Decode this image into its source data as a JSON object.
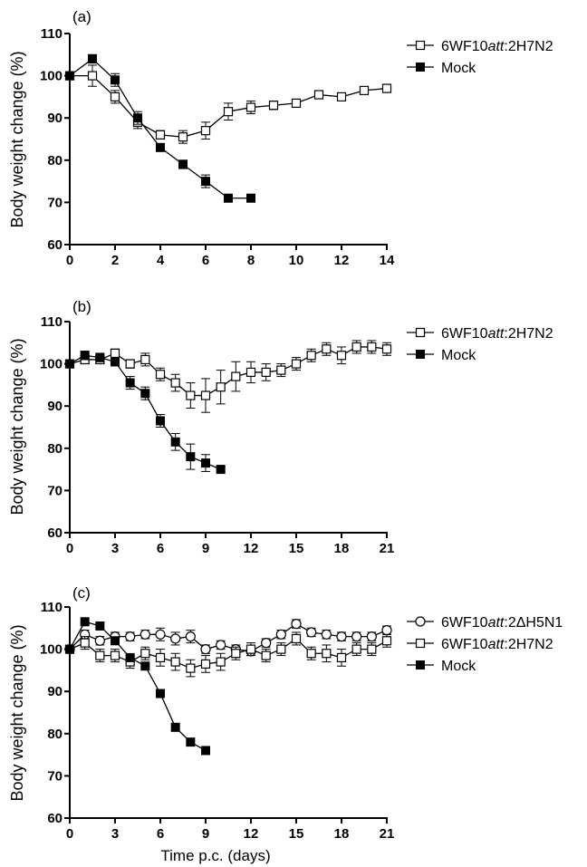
{
  "xlabel": "Time p.c. (days)",
  "chart_data": [
    {
      "type": "line",
      "panel": "(a)",
      "xlabel": "",
      "ylabel": "Body weight change (%)",
      "xlim": [
        0,
        14
      ],
      "ylim": [
        60,
        110
      ],
      "xticks": [
        "0",
        "2",
        "4",
        "6",
        "8",
        "10",
        "12",
        "14"
      ],
      "yticks": [
        "60",
        "70",
        "80",
        "90",
        "100",
        "110"
      ],
      "legend": [
        {
          "prefix": "6WF10",
          "italic": "att",
          "suffix": ":2H7N2",
          "marker": "open-square"
        },
        {
          "prefix": "Mock",
          "italic": "",
          "suffix": "",
          "marker": "filled-square"
        }
      ],
      "series": [
        {
          "name": "6WF10att:2H7N2",
          "marker": "open-square",
          "x": [
            0,
            1,
            2,
            3,
            4,
            5,
            6,
            7,
            8,
            9,
            10,
            11,
            12,
            13,
            14
          ],
          "y": [
            100,
            100,
            95,
            89,
            86,
            85.5,
            87,
            91.5,
            92.5,
            93,
            93.5,
            95.5,
            95,
            96.5,
            97
          ],
          "err": [
            0.8,
            2.5,
            1.5,
            1.5,
            1,
            1.5,
            2,
            2,
            1.5,
            1,
            0.8,
            0.5,
            0.5,
            0.5,
            0.5
          ]
        },
        {
          "name": "Mock",
          "marker": "filled-square",
          "x": [
            0,
            1,
            2,
            3,
            4,
            5,
            6,
            7,
            8
          ],
          "y": [
            100,
            104,
            99,
            90,
            83,
            79,
            75,
            71,
            71
          ],
          "err": [
            0.5,
            1,
            1.5,
            1.5,
            0.8,
            1,
            1.5,
            0.5,
            0
          ]
        }
      ]
    },
    {
      "type": "line",
      "panel": "(b)",
      "xlabel": "",
      "ylabel": "Body weight change (%)",
      "xlim": [
        0,
        21
      ],
      "ylim": [
        60,
        110
      ],
      "xticks": [
        "0",
        "3",
        "6",
        "9",
        "12",
        "15",
        "18",
        "21"
      ],
      "yticks": [
        "60",
        "70",
        "80",
        "90",
        "100",
        "110"
      ],
      "legend": [
        {
          "prefix": "6WF10",
          "italic": "att",
          "suffix": ":2H7N2",
          "marker": "open-square"
        },
        {
          "prefix": "Mock",
          "italic": "",
          "suffix": "",
          "marker": "filled-square"
        }
      ],
      "series": [
        {
          "name": "6WF10att:2H7N2",
          "marker": "open-square",
          "x": [
            0,
            1,
            2,
            3,
            4,
            5,
            6,
            7,
            8,
            9,
            10,
            11,
            12,
            13,
            14,
            15,
            16,
            17,
            18,
            19,
            20,
            21
          ],
          "y": [
            100,
            101,
            101,
            102.5,
            100,
            101,
            97.5,
            95.5,
            92.5,
            92.5,
            94.5,
            97,
            98,
            98,
            98.5,
            100,
            102,
            103.5,
            102,
            104,
            104,
            103.5
          ],
          "err": [
            0.5,
            1,
            1,
            1,
            1,
            1.5,
            1.5,
            2,
            3,
            4,
            4,
            3.5,
            2.5,
            2,
            1.5,
            1.5,
            1.5,
            1.5,
            2,
            1.5,
            1.5,
            1.5
          ]
        },
        {
          "name": "Mock",
          "marker": "filled-square",
          "x": [
            0,
            1,
            2,
            3,
            4,
            5,
            6,
            7,
            8,
            9,
            10
          ],
          "y": [
            100,
            102,
            101.5,
            100.5,
            95.5,
            93,
            86.5,
            81.5,
            78,
            76.5,
            75
          ],
          "err": [
            0.5,
            1,
            1,
            1,
            1.5,
            1.5,
            1.5,
            2,
            3,
            2,
            0.5
          ]
        }
      ]
    },
    {
      "type": "line",
      "panel": "(c)",
      "xlabel": "Time p.c. (days)",
      "ylabel": "Body weight change (%)",
      "xlim": [
        0,
        21
      ],
      "ylim": [
        60,
        110
      ],
      "xticks": [
        "0",
        "3",
        "6",
        "9",
        "12",
        "15",
        "18",
        "21"
      ],
      "yticks": [
        "60",
        "70",
        "80",
        "90",
        "100",
        "110"
      ],
      "legend": [
        {
          "prefix": "6WF10",
          "italic": "att",
          "suffix": ":2ΔH5N1",
          "marker": "open-circle"
        },
        {
          "prefix": "6WF10",
          "italic": "att",
          "suffix": ":2H7N2",
          "marker": "open-square"
        },
        {
          "prefix": "Mock",
          "italic": "",
          "suffix": "",
          "marker": "filled-square"
        }
      ],
      "series": [
        {
          "name": "6WF10att:2ΔH5N1",
          "marker": "open-circle",
          "x": [
            0,
            1,
            2,
            3,
            4,
            5,
            6,
            7,
            8,
            9,
            10,
            11,
            12,
            13,
            14,
            15,
            16,
            17,
            18,
            19,
            20,
            21
          ],
          "y": [
            100,
            103.5,
            102,
            103,
            103,
            103.5,
            103.5,
            102.5,
            103,
            100,
            101,
            100,
            99.5,
            101.5,
            103.5,
            106,
            104,
            103.5,
            103,
            103,
            103,
            104.5
          ],
          "err": [
            0.5,
            1,
            1,
            1,
            1,
            1,
            1.5,
            1.5,
            1.5,
            1,
            1,
            1,
            1,
            1,
            1,
            1,
            1,
            1,
            1,
            1,
            1,
            1
          ]
        },
        {
          "name": "6WF10att:2H7N2",
          "marker": "open-square",
          "x": [
            0,
            1,
            2,
            3,
            4,
            5,
            6,
            7,
            8,
            9,
            10,
            11,
            12,
            13,
            14,
            15,
            16,
            17,
            18,
            19,
            20,
            21
          ],
          "y": [
            100,
            101.5,
            98.5,
            98.5,
            97,
            99,
            98,
            97,
            95.5,
            96.5,
            97,
            99,
            100,
            98.5,
            100,
            102.5,
            99,
            99,
            98,
            100,
            100,
            102
          ],
          "err": [
            0.5,
            1.5,
            1.5,
            1.5,
            1.5,
            1.5,
            2,
            2,
            2,
            2,
            2,
            1.5,
            1.5,
            1.5,
            1.5,
            1.5,
            1.5,
            2,
            2,
            1.5,
            1.5,
            1.5
          ]
        },
        {
          "name": "Mock",
          "marker": "filled-square",
          "x": [
            0,
            1,
            2,
            3,
            4,
            5,
            6,
            7,
            8,
            9
          ],
          "y": [
            100,
            106.5,
            105.5,
            102,
            98,
            96,
            89.5,
            81.5,
            78,
            76
          ],
          "err": [
            0,
            0,
            0,
            0,
            0,
            0,
            0,
            0,
            0,
            0
          ]
        }
      ]
    }
  ]
}
